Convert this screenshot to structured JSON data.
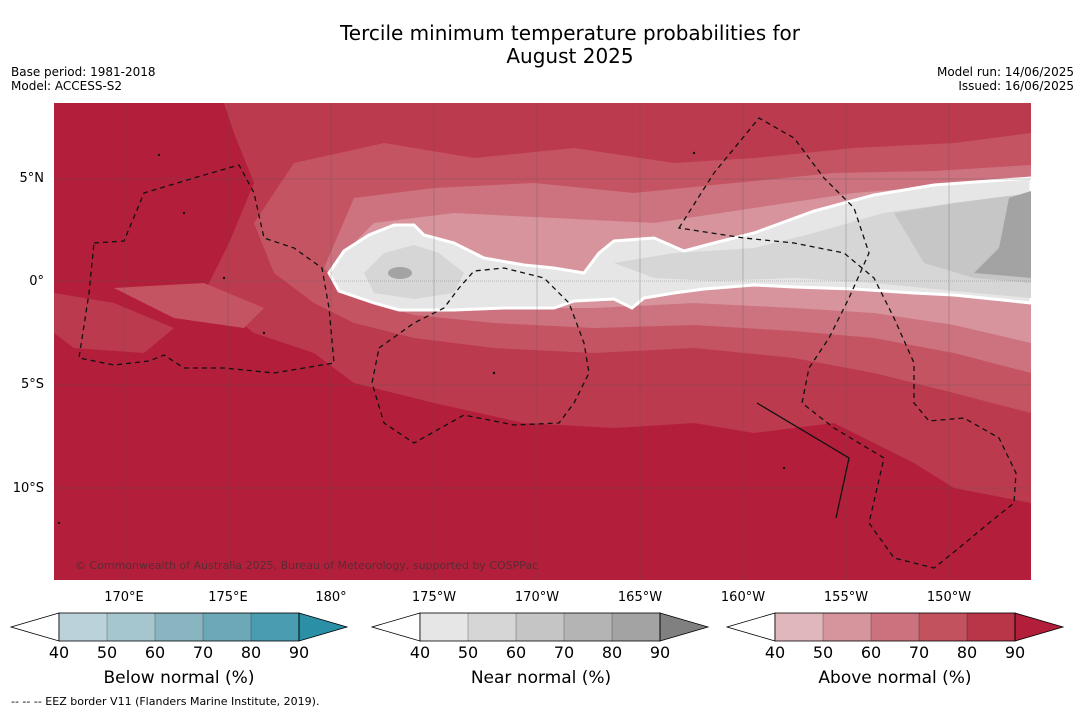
{
  "title_line1": "Tercile minimum temperature probabilities for",
  "title_line2": "August 2025",
  "meta_left": [
    "Base period: 1981-2018",
    "Model: ACCESS-S2"
  ],
  "meta_right": [
    "Model run: 14/06/2025",
    "Issued: 16/06/2025"
  ],
  "lat_labels": [
    "5°N",
    "0°",
    "5°S",
    "10°S"
  ],
  "lon_labels": [
    "170°E",
    "175°E",
    "180°",
    "175°W",
    "170°W",
    "165°W",
    "160°W",
    "155°W",
    "150°W"
  ],
  "copyright": "© Commonwealth of Australia 2025, Bureau of Meteorology, supported by COSPPac",
  "colorbars": [
    {
      "label": "Below normal (%)",
      "ticks": [
        "40",
        "50",
        "60",
        "70",
        "80",
        "90"
      ],
      "colors": [
        "#bcd2da",
        "#a5c6ce",
        "#89b5c1",
        "#6ba9b8",
        "#4a9db0",
        "#2b8fa6"
      ]
    },
    {
      "label": "Near normal (%)",
      "ticks": [
        "40",
        "50",
        "60",
        "70",
        "80",
        "90"
      ],
      "colors": [
        "#e6e6e6",
        "#d6d6d6",
        "#c5c5c5",
        "#b4b4b4",
        "#a3a3a3",
        "#808080"
      ]
    },
    {
      "label": "Above normal (%)",
      "ticks": [
        "40",
        "50",
        "60",
        "70",
        "80",
        "90"
      ],
      "colors": [
        "#e0b7bc",
        "#d6949c",
        "#cc727e",
        "#c3525f",
        "#b93548",
        "#b31f3b"
      ]
    }
  ],
  "eez_note": "--  --  -- EEZ border V11 (Flanders Marine Institute, 2019).",
  "map_colors": {
    "deep": "#b31f3b",
    "c80": "#bc3a4d",
    "c70": "#c55462",
    "c60": "#cd7380",
    "c50": "#d7949c",
    "n40": "#e6e6e6",
    "n50": "#d6d6d6",
    "n60": "#c6c6c6",
    "n70": "#a3a3a3"
  }
}
